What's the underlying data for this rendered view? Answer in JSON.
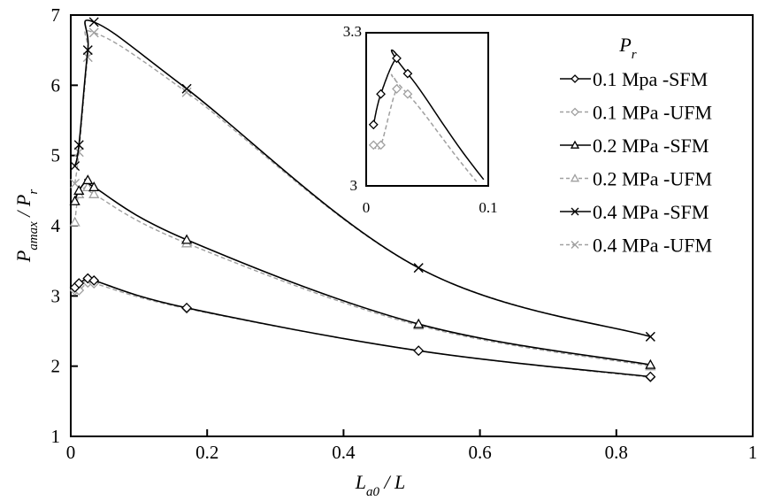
{
  "chart_data": {
    "type": "line",
    "xlabel": "L_a0 / L",
    "ylabel": "P_amax / P_r",
    "xlim": [
      0,
      1
    ],
    "ylim": [
      1,
      7
    ],
    "xticks": [
      "0",
      "0.2",
      "0.4",
      "0.6",
      "0.8",
      "1"
    ],
    "yticks": [
      "1",
      "2",
      "3",
      "4",
      "5",
      "6",
      "7"
    ],
    "legend_title": "P_r",
    "legend_position": "top-right",
    "grid": false,
    "x": [
      0.006,
      0.012,
      0.025,
      0.034,
      0.17,
      0.51,
      0.85
    ],
    "series": [
      {
        "name": "0.1 Mpa -SFM",
        "marker": "diamond",
        "color": "#000000",
        "dash": false,
        "values": [
          3.12,
          3.18,
          3.25,
          3.22,
          2.83,
          2.22,
          1.85
        ]
      },
      {
        "name": "0.1 MPa -UFM",
        "marker": "diamond",
        "color": "#a0a0a0",
        "dash": true,
        "values": [
          3.08,
          3.08,
          3.19,
          3.18,
          2.82,
          2.22,
          1.84
        ]
      },
      {
        "name": "0.2 MPa -SFM",
        "marker": "triangle",
        "color": "#000000",
        "dash": false,
        "values": [
          4.35,
          4.5,
          4.65,
          4.55,
          3.8,
          2.6,
          2.02
        ]
      },
      {
        "name": "0.2 MPa -UFM",
        "marker": "triangle",
        "color": "#a0a0a0",
        "dash": true,
        "values": [
          4.05,
          4.45,
          4.55,
          4.45,
          3.75,
          2.58,
          2.0
        ]
      },
      {
        "name": "0.4 MPa -SFM",
        "marker": "x",
        "color": "#000000",
        "dash": false,
        "values": [
          4.85,
          5.15,
          6.5,
          6.9,
          5.95,
          3.4,
          2.42
        ]
      },
      {
        "name": "0.4 MPa -UFM",
        "marker": "x",
        "color": "#a0a0a0",
        "dash": true,
        "values": [
          4.6,
          5.05,
          6.4,
          6.75,
          5.9,
          3.4,
          2.42
        ]
      }
    ],
    "inset": {
      "xlim": [
        0,
        0.1
      ],
      "ylim": [
        3,
        3.3
      ],
      "xticks": [
        "0",
        "0.1"
      ],
      "yticks": [
        "3",
        "3.3"
      ],
      "series_shown": [
        "0.1 Mpa -SFM",
        "0.1 MPa -UFM"
      ]
    }
  }
}
